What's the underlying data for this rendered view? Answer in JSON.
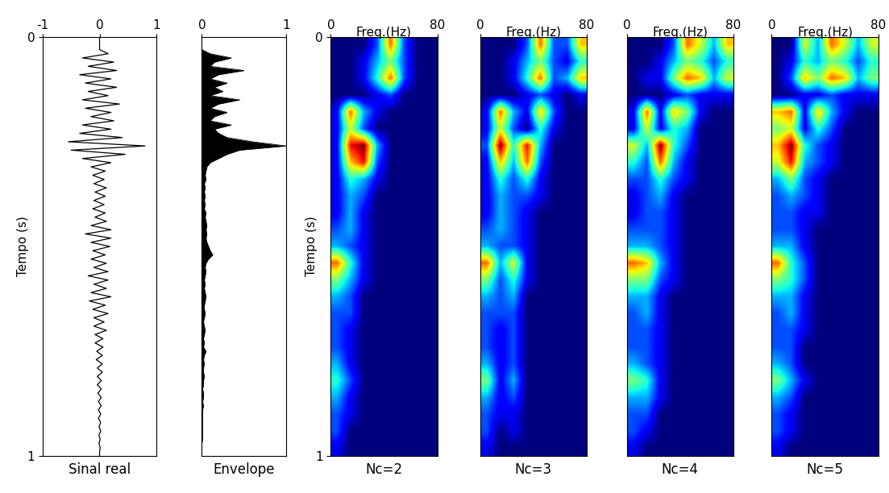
{
  "chart_data": [
    {
      "type": "line",
      "title": "Sinal real",
      "ylabel": "Tempo (s)",
      "color": "black",
      "xlim": [
        -1,
        1
      ],
      "xticks": [
        -1,
        0,
        1
      ],
      "ylim": [
        1,
        0
      ],
      "yticks": [
        0,
        1
      ],
      "y": [
        0,
        0.01,
        0.02,
        0.03,
        0.04,
        0.05,
        0.06,
        0.07,
        0.08,
        0.09,
        0.1,
        0.11,
        0.12,
        0.13,
        0.14,
        0.15,
        0.16,
        0.17,
        0.18,
        0.19,
        0.2,
        0.21,
        0.22,
        0.23,
        0.24,
        0.25,
        0.26,
        0.27,
        0.28,
        0.29,
        0.3,
        0.31,
        0.32,
        0.33,
        0.34,
        0.35,
        0.36,
        0.37,
        0.38,
        0.39,
        0.4,
        0.41,
        0.42,
        0.43,
        0.44,
        0.45,
        0.46,
        0.47,
        0.48,
        0.49,
        0.5,
        0.51,
        0.52,
        0.53,
        0.54,
        0.55,
        0.56,
        0.57,
        0.58,
        0.59,
        0.6,
        0.61,
        0.62,
        0.63,
        0.64,
        0.65,
        0.66,
        0.67,
        0.68,
        0.69,
        0.7,
        0.71,
        0.72,
        0.73,
        0.74,
        0.75,
        0.76,
        0.77,
        0.78,
        0.79,
        0.8,
        0.81,
        0.82,
        0.83,
        0.84,
        0.85,
        0.86,
        0.87,
        0.88,
        0.89,
        0.9,
        0.91,
        0.92,
        0.93,
        0.94,
        0.95,
        0.96,
        0.97,
        0.98,
        0.99,
        1.0
      ],
      "x": [
        0,
        0,
        0,
        0,
        0.15,
        -0.3,
        0.25,
        -0.2,
        0.3,
        -0.35,
        0.2,
        -0.25,
        0.3,
        -0.2,
        0.15,
        -0.3,
        0.35,
        -0.25,
        0.2,
        -0.15,
        0.25,
        -0.3,
        0.2,
        -0.35,
        0.4,
        -0.55,
        0.8,
        -0.5,
        0.45,
        -0.3,
        0.2,
        -0.15,
        0.1,
        -0.12,
        0.08,
        -0.1,
        0.12,
        -0.08,
        0.1,
        -0.1,
        0.08,
        -0.12,
        0.1,
        -0.08,
        0.12,
        -0.15,
        0.2,
        -0.25,
        0.2,
        -0.15,
        0.18,
        -0.12,
        0.1,
        -0.15,
        0.12,
        -0.1,
        0.15,
        -0.2,
        0.15,
        -0.1,
        0.12,
        -0.15,
        0.2,
        -0.18,
        0.1,
        -0.12,
        0.15,
        -0.1,
        0.08,
        -0.1,
        0.12,
        -0.08,
        0.06,
        -0.08,
        0.06,
        -0.05,
        0.05,
        -0.06,
        0.05,
        -0.04,
        0.05,
        -0.04,
        0.03,
        -0.04,
        0.03,
        -0.03,
        0.03,
        -0.02,
        0.03,
        -0.02,
        0.02,
        -0.02,
        0.02,
        -0.01,
        0.02,
        -0.01,
        0.01,
        -0.01,
        0.01,
        0,
        0
      ]
    },
    {
      "type": "area",
      "title": "Envelope",
      "color": "black",
      "tick_labels": "x",
      "xlim": [
        0,
        1
      ],
      "xticks": [
        0,
        1
      ],
      "ylim": [
        1,
        0
      ],
      "y": [
        0,
        0.01,
        0.02,
        0.03,
        0.04,
        0.05,
        0.06,
        0.07,
        0.08,
        0.09,
        0.1,
        0.11,
        0.12,
        0.13,
        0.14,
        0.15,
        0.16,
        0.17,
        0.18,
        0.19,
        0.2,
        0.21,
        0.22,
        0.23,
        0.24,
        0.25,
        0.26,
        0.27,
        0.28,
        0.29,
        0.3,
        0.31,
        0.32,
        0.33,
        0.34,
        0.35,
        0.36,
        0.37,
        0.38,
        0.39,
        0.4,
        0.41,
        0.42,
        0.43,
        0.44,
        0.45,
        0.46,
        0.47,
        0.48,
        0.49,
        0.5,
        0.51,
        0.52,
        0.53,
        0.54,
        0.55,
        0.56,
        0.57,
        0.58,
        0.59,
        0.6,
        0.61,
        0.62,
        0.63,
        0.64,
        0.65,
        0.66,
        0.67,
        0.68,
        0.69,
        0.7,
        0.71,
        0.72,
        0.73,
        0.74,
        0.75,
        0.76,
        0.77,
        0.78,
        0.79,
        0.8,
        0.81,
        0.82,
        0.83,
        0.84,
        0.85,
        0.86,
        0.87,
        0.88,
        0.89,
        0.9,
        0.91,
        0.92,
        0.93,
        0.94,
        0.95,
        0.96,
        0.97,
        0.98,
        0.99,
        1.0
      ],
      "x": [
        0,
        0,
        0,
        0,
        0.1,
        0.35,
        0.15,
        0.1,
        0.5,
        0.2,
        0.1,
        0.3,
        0.15,
        0.25,
        0.1,
        0.45,
        0.2,
        0.1,
        0.3,
        0.15,
        0.1,
        0.35,
        0.15,
        0.2,
        0.3,
        0.6,
        1.0,
        0.45,
        0.3,
        0.2,
        0.1,
        0.06,
        0.05,
        0.04,
        0.05,
        0.03,
        0.04,
        0.03,
        0.04,
        0.03,
        0.04,
        0.03,
        0.05,
        0.04,
        0.05,
        0.06,
        0.05,
        0.06,
        0.05,
        0.06,
        0.08,
        0.1,
        0.13,
        0.08,
        0.05,
        0.04,
        0.05,
        0.04,
        0.03,
        0.04,
        0.03,
        0.04,
        0.05,
        0.04,
        0.03,
        0.03,
        0.04,
        0.03,
        0.02,
        0.03,
        0.04,
        0.03,
        0.02,
        0.03,
        0.02,
        0.05,
        0.03,
        0.02,
        0.03,
        0.02,
        0.02,
        0.03,
        0.02,
        0.02,
        0.01,
        0.02,
        0.02,
        0.01,
        0.02,
        0.01,
        0.01,
        0.01,
        0.01,
        0.01,
        0.01,
        0.01,
        0.01,
        0,
        0,
        0,
        0
      ]
    },
    {
      "type": "heatmap",
      "title": "Nc=2",
      "xlabel": "Freq.(Hz)",
      "ylabel": "Tempo (s)",
      "color": "jet",
      "xlim": [
        0,
        80
      ],
      "xticks": [
        0,
        80
      ],
      "ylim": [
        1,
        0
      ],
      "yticks": [
        0,
        1
      ],
      "cells": [
        [
          0,
          0,
          0,
          2,
          8,
          2,
          0,
          0
        ],
        [
          0,
          0,
          1,
          3,
          5,
          2,
          0,
          0
        ],
        [
          0,
          0,
          1,
          4,
          8,
          2,
          0,
          0
        ],
        [
          0,
          0,
          0,
          1,
          2,
          0,
          0,
          0
        ],
        [
          1,
          8,
          3,
          1,
          0,
          0,
          0,
          0
        ],
        [
          1,
          6,
          2,
          0,
          0,
          0,
          0,
          0
        ],
        [
          1,
          9,
          10,
          3,
          0,
          0,
          0,
          0
        ],
        [
          1,
          7,
          9,
          2,
          0,
          0,
          0,
          0
        ],
        [
          1,
          4,
          3,
          1,
          0,
          0,
          0,
          0
        ],
        [
          1,
          3,
          2,
          0,
          0,
          0,
          0,
          0
        ],
        [
          1,
          3,
          1,
          0,
          0,
          0,
          0,
          0
        ],
        [
          2,
          3,
          1,
          0,
          0,
          0,
          0,
          0
        ],
        [
          3,
          2,
          1,
          0,
          0,
          0,
          0,
          0
        ],
        [
          8,
          4,
          1,
          0,
          0,
          0,
          0,
          0
        ],
        [
          5,
          3,
          1,
          0,
          0,
          0,
          0,
          0
        ],
        [
          3,
          2,
          0,
          0,
          0,
          0,
          0,
          0
        ],
        [
          2,
          2,
          0,
          0,
          0,
          0,
          0,
          0
        ],
        [
          2,
          1,
          0,
          0,
          0,
          0,
          0,
          0
        ],
        [
          2,
          1,
          0,
          0,
          0,
          0,
          0,
          0
        ],
        [
          3,
          1,
          0,
          0,
          0,
          0,
          0,
          0
        ],
        [
          4,
          2,
          0,
          0,
          0,
          0,
          0,
          0
        ],
        [
          3,
          1,
          0,
          0,
          0,
          0,
          0,
          0
        ],
        [
          2,
          1,
          0,
          0,
          0,
          0,
          0,
          0
        ],
        [
          2,
          0,
          0,
          0,
          0,
          0,
          0,
          0
        ],
        [
          1,
          0,
          0,
          0,
          0,
          0,
          0,
          0
        ]
      ]
    },
    {
      "type": "heatmap",
      "title": "Nc=3",
      "xlabel": "Freq.(Hz)",
      "color": "jet",
      "tick_labels": "x",
      "xlim": [
        0,
        80
      ],
      "xticks": [
        0,
        80
      ],
      "ylim": [
        1,
        0
      ],
      "cells": [
        [
          0,
          0,
          0,
          2,
          8,
          2,
          2,
          7
        ],
        [
          0,
          0,
          1,
          3,
          5,
          2,
          1,
          4
        ],
        [
          0,
          0,
          1,
          4,
          8,
          2,
          3,
          7
        ],
        [
          0,
          0,
          0,
          1,
          2,
          1,
          0,
          1
        ],
        [
          1,
          8,
          3,
          1,
          7,
          2,
          0,
          0
        ],
        [
          1,
          6,
          2,
          0,
          4,
          1,
          0,
          0
        ],
        [
          2,
          10,
          4,
          9,
          3,
          0,
          0,
          0
        ],
        [
          1,
          7,
          3,
          8,
          2,
          0,
          0,
          0
        ],
        [
          1,
          4,
          2,
          4,
          1,
          0,
          0,
          0
        ],
        [
          1,
          3,
          2,
          2,
          1,
          0,
          0,
          0
        ],
        [
          1,
          3,
          2,
          1,
          0,
          0,
          0,
          0
        ],
        [
          2,
          3,
          2,
          1,
          0,
          0,
          0,
          0
        ],
        [
          3,
          2,
          2,
          1,
          0,
          0,
          0,
          0
        ],
        [
          8,
          3,
          6,
          1,
          0,
          0,
          0,
          0
        ],
        [
          5,
          2,
          4,
          1,
          0,
          0,
          0,
          0
        ],
        [
          3,
          2,
          3,
          0,
          0,
          0,
          0,
          0
        ],
        [
          2,
          2,
          2,
          0,
          0,
          0,
          0,
          0
        ],
        [
          2,
          1,
          2,
          0,
          0,
          0,
          0,
          0
        ],
        [
          2,
          1,
          2,
          0,
          0,
          0,
          0,
          0
        ],
        [
          3,
          1,
          2,
          0,
          0,
          0,
          0,
          0
        ],
        [
          5,
          1,
          3,
          0,
          0,
          0,
          0,
          0
        ],
        [
          3,
          1,
          2,
          0,
          0,
          0,
          0,
          0
        ],
        [
          2,
          1,
          1,
          0,
          0,
          0,
          0,
          0
        ],
        [
          2,
          0,
          1,
          0,
          0,
          0,
          0,
          0
        ],
        [
          1,
          0,
          0,
          0,
          0,
          0,
          0,
          0
        ]
      ]
    },
    {
      "type": "heatmap",
      "title": "Nc=4",
      "xlabel": "Freq.(Hz)",
      "color": "jet",
      "tick_labels": "x",
      "xlim": [
        0,
        80
      ],
      "xticks": [
        0,
        80
      ],
      "ylim": [
        1,
        0
      ],
      "cells": [
        [
          0,
          0,
          0,
          2,
          8,
          6,
          3,
          7
        ],
        [
          0,
          0,
          1,
          3,
          5,
          4,
          2,
          4
        ],
        [
          0,
          1,
          1,
          5,
          8,
          7,
          3,
          6
        ],
        [
          0,
          0,
          0,
          1,
          2,
          1,
          1,
          1
        ],
        [
          1,
          8,
          1,
          7,
          5,
          1,
          0,
          0
        ],
        [
          1,
          6,
          1,
          4,
          3,
          0,
          0,
          0
        ],
        [
          6,
          3,
          10,
          4,
          2,
          0,
          0,
          0
        ],
        [
          4,
          2,
          8,
          3,
          1,
          0,
          0,
          0
        ],
        [
          2,
          2,
          4,
          2,
          1,
          0,
          0,
          0
        ],
        [
          1,
          2,
          3,
          1,
          0,
          0,
          0,
          0
        ],
        [
          1,
          2,
          2,
          1,
          0,
          0,
          0,
          0
        ],
        [
          2,
          2,
          2,
          1,
          0,
          0,
          0,
          0
        ],
        [
          3,
          3,
          2,
          1,
          0,
          0,
          0,
          0
        ],
        [
          8,
          7,
          3,
          1,
          0,
          0,
          0,
          0
        ],
        [
          5,
          5,
          2,
          1,
          0,
          0,
          0,
          0
        ],
        [
          3,
          3,
          1,
          0,
          0,
          0,
          0,
          0
        ],
        [
          2,
          3,
          1,
          0,
          0,
          0,
          0,
          0
        ],
        [
          2,
          2,
          1,
          0,
          0,
          0,
          0,
          0
        ],
        [
          2,
          2,
          1,
          0,
          0,
          0,
          0,
          0
        ],
        [
          3,
          2,
          1,
          0,
          0,
          0,
          0,
          0
        ],
        [
          5,
          4,
          1,
          0,
          0,
          0,
          0,
          0
        ],
        [
          3,
          3,
          1,
          0,
          0,
          0,
          0,
          0
        ],
        [
          2,
          2,
          0,
          0,
          0,
          0,
          0,
          0
        ],
        [
          2,
          1,
          0,
          0,
          0,
          0,
          0,
          0
        ],
        [
          1,
          0,
          0,
          0,
          0,
          0,
          0,
          0
        ]
      ]
    },
    {
      "type": "heatmap",
      "title": "Nc=5",
      "xlabel": "Freq.(Hz)",
      "color": "jet",
      "tick_labels": "x",
      "xlim": [
        0,
        80
      ],
      "xticks": [
        0,
        80
      ],
      "ylim": [
        1,
        0
      ],
      "cells": [
        [
          0,
          0,
          6,
          3,
          8,
          6,
          3,
          6
        ],
        [
          0,
          1,
          4,
          3,
          5,
          4,
          2,
          4
        ],
        [
          0,
          2,
          7,
          5,
          8,
          7,
          3,
          5
        ],
        [
          0,
          0,
          1,
          1,
          2,
          1,
          1,
          1
        ],
        [
          7,
          8,
          1,
          7,
          3,
          1,
          0,
          0
        ],
        [
          5,
          6,
          1,
          4,
          2,
          0,
          0,
          0
        ],
        [
          7,
          10,
          4,
          2,
          1,
          0,
          0,
          0
        ],
        [
          6,
          9,
          3,
          2,
          1,
          0,
          0,
          0
        ],
        [
          3,
          5,
          2,
          1,
          0,
          0,
          0,
          0
        ],
        [
          2,
          3,
          2,
          1,
          0,
          0,
          0,
          0
        ],
        [
          2,
          2,
          1,
          1,
          0,
          0,
          0,
          0
        ],
        [
          2,
          2,
          1,
          0,
          0,
          0,
          0,
          0
        ],
        [
          3,
          3,
          1,
          0,
          0,
          0,
          0,
          0
        ],
        [
          8,
          4,
          2,
          0,
          0,
          0,
          0,
          0
        ],
        [
          5,
          4,
          2,
          0,
          0,
          0,
          0,
          0
        ],
        [
          3,
          3,
          1,
          0,
          0,
          0,
          0,
          0
        ],
        [
          2,
          3,
          1,
          0,
          0,
          0,
          0,
          0
        ],
        [
          2,
          2,
          1,
          0,
          0,
          0,
          0,
          0
        ],
        [
          2,
          2,
          0,
          0,
          0,
          0,
          0,
          0
        ],
        [
          3,
          2,
          0,
          0,
          0,
          0,
          0,
          0
        ],
        [
          5,
          3,
          1,
          0,
          0,
          0,
          0,
          0
        ],
        [
          3,
          2,
          0,
          0,
          0,
          0,
          0,
          0
        ],
        [
          2,
          1,
          0,
          0,
          0,
          0,
          0,
          0
        ],
        [
          2,
          1,
          0,
          0,
          0,
          0,
          0,
          0
        ],
        [
          1,
          0,
          0,
          0,
          0,
          0,
          0,
          0
        ]
      ]
    }
  ]
}
